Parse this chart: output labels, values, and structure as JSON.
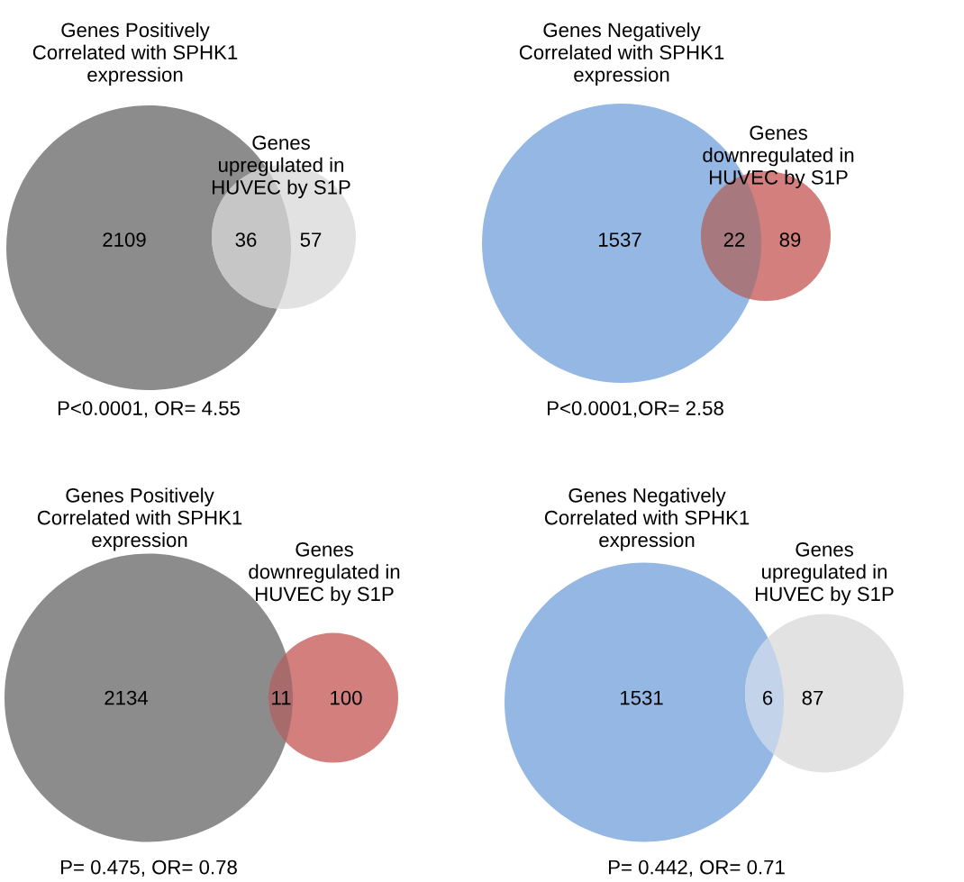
{
  "chart_data": [
    {
      "type": "other",
      "categories": [
        "Genes Positively\nCorrelated with SPHK1\nexpression",
        null,
        "Genes\nupregulated in\nHUVEC by S1P"
      ],
      "values": [
        2109,
        36,
        57
      ],
      "data_labels": true,
      "colors": [
        "#8c8c8c",
        "#c6c6c6",
        "#e2e2e2"
      ],
      "annotations": [
        "P<0.0001, OR= 4.55"
      ]
    },
    {
      "type": "other",
      "categories": [
        "Genes Negatively\nCorrelated with SPHK1\nexpression",
        null,
        "Genes\ndownregulated in\nHUVEC by S1P"
      ],
      "values": [
        1537,
        22,
        89
      ],
      "data_labels": true,
      "colors": [
        "#95b7e3",
        "#a8787f",
        "#d27f7d"
      ],
      "annotations": [
        "P<0.0001,OR= 2.58"
      ]
    },
    {
      "type": "other",
      "categories": [
        "Genes Positively\nCorrelated with SPHK1\nexpression",
        null,
        "Genes\ndownregulated in\nHUVEC by S1P"
      ],
      "values": [
        2134,
        11,
        100
      ],
      "data_labels": true,
      "colors": [
        "#8c8c8c",
        "#a86b6b",
        "#d27f7d"
      ],
      "annotations": [
        "P= 0.475, OR= 0.78"
      ]
    },
    {
      "type": "other",
      "categories": [
        "Genes Negatively\nCorrelated with SPHK1\nexpression",
        null,
        "Genes\nupregulated in\nHUVEC by S1P"
      ],
      "values": [
        1531,
        6,
        87
      ],
      "data_labels": true,
      "colors": [
        "#95b7e3",
        "#c3d4ea",
        "#e2e2e2"
      ],
      "annotations": [
        "P= 0.442, OR= 0.71"
      ]
    }
  ]
}
